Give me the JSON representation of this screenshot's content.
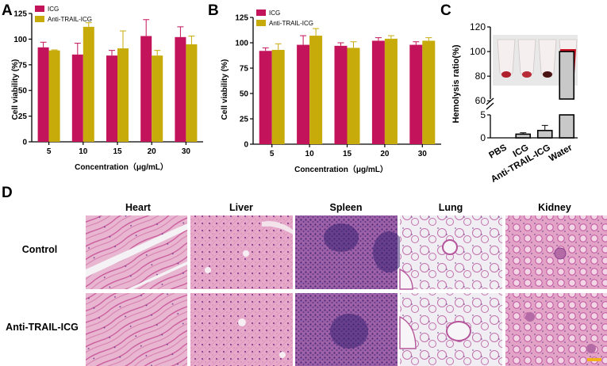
{
  "panels": {
    "a": "A",
    "b": "B",
    "c": "C",
    "d": "D"
  },
  "colors": {
    "icg": "#c3135a",
    "anti": "#c7ab0b",
    "water_bar": "#c8c8c8",
    "axis": "#000000",
    "tissue_bg": "#ead0df",
    "tissue_stain": "#c04a8e",
    "tissue_dark": "#4b2c86",
    "scalebar": "#f2b21b"
  },
  "chart_data": [
    {
      "panel": "A",
      "type": "bar",
      "ylabel": "Cell viability (%)",
      "xlabel": "Concentration（μg/mL）",
      "ylim": [
        0,
        125
      ],
      "yticks": [
        "0",
        "25",
        "50",
        "75",
        "100",
        "125"
      ],
      "categories": [
        "5",
        "10",
        "15",
        "20",
        "30"
      ],
      "legend": "top-left",
      "series": [
        {
          "name": "ICG",
          "values": [
            92,
            85,
            84,
            103,
            102
          ],
          "errors": [
            5,
            11,
            5,
            16,
            10
          ]
        },
        {
          "name": "Anti-TRAIL-ICG",
          "values": [
            89,
            112,
            91,
            84,
            95
          ],
          "errors": [
            0.5,
            4,
            17,
            5,
            8
          ]
        }
      ]
    },
    {
      "panel": "B",
      "type": "bar",
      "ylabel": "Cell viability (%)",
      "xlabel": "Concentration（μg/mL）",
      "ylim": [
        0,
        125
      ],
      "yticks": [
        "0",
        "25",
        "50",
        "75",
        "100",
        "125"
      ],
      "categories": [
        "5",
        "10",
        "15",
        "20",
        "30"
      ],
      "legend": "top-left",
      "series": [
        {
          "name": "ICG",
          "values": [
            92,
            98,
            97,
            102,
            98
          ],
          "errors": [
            3,
            9,
            3,
            3,
            3
          ]
        },
        {
          "name": "Anti-TRAIL-ICG",
          "values": [
            93,
            107,
            95,
            104,
            102
          ],
          "errors": [
            6,
            7,
            6,
            3,
            3
          ]
        }
      ]
    },
    {
      "panel": "C",
      "type": "bar",
      "ylabel": "Hemolysis ratio(%)",
      "axis_break": [
        5,
        55
      ],
      "yticks_lower": [
        "0",
        "5"
      ],
      "yticks_upper": [
        "60",
        "80",
        "100",
        "120"
      ],
      "ylim": [
        0,
        120
      ],
      "categories": [
        "PBS",
        "ICG",
        "Anti-TRAIL-ICG",
        "Water"
      ],
      "values": [
        0,
        0.8,
        1.6,
        100
      ],
      "errors": [
        0,
        0.3,
        1.1,
        0
      ]
    }
  ],
  "histology": {
    "columns": [
      "Heart",
      "Liver",
      "Spleen",
      "Lung",
      "Kidney"
    ],
    "rows": [
      "Control",
      "Anti-TRAIL-ICG"
    ]
  }
}
